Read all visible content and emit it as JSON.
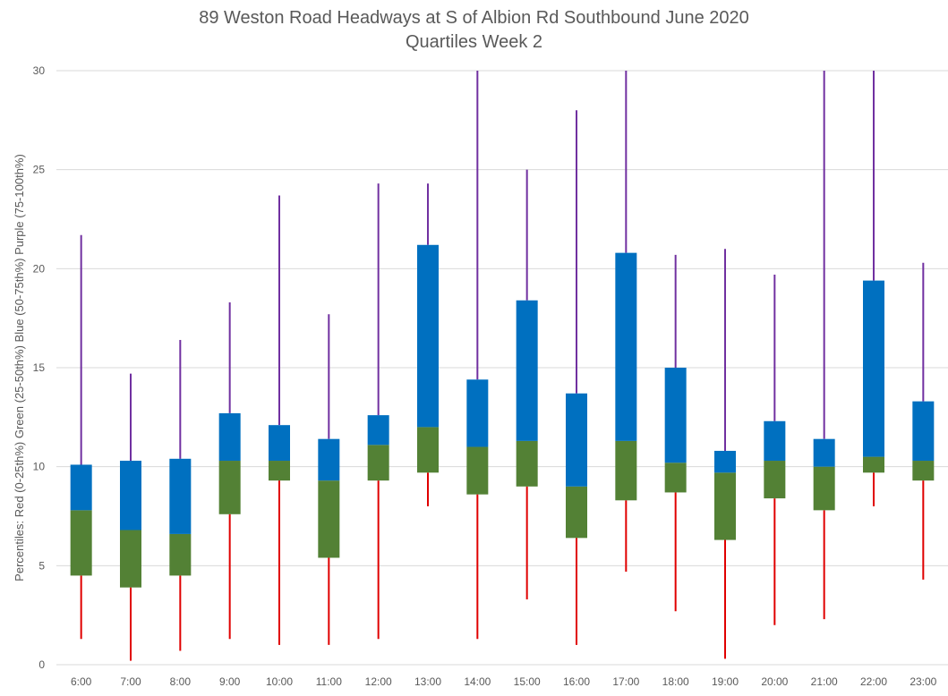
{
  "chart_data": {
    "type": "box",
    "title": "89 Weston Road Headways at S of Albion Rd Southbound June 2020",
    "subtitle": "Quartiles Week 2",
    "xlabel": "",
    "ylabel": "Percentiles:  Red (0-25th%)  Green (25-50th%)  Blue (50-75th%)  Purple (75-100th%)",
    "ylim": [
      0,
      30
    ],
    "yticks": [
      0,
      5,
      10,
      15,
      20,
      25,
      30
    ],
    "grid": true,
    "colors": {
      "min_to_q1": "#e00000",
      "q1_to_median": "#538135",
      "median_to_q3": "#0070c0",
      "q3_to_max": "#7030a0"
    },
    "categories": [
      "6:00",
      "7:00",
      "8:00",
      "9:00",
      "10:00",
      "11:00",
      "12:00",
      "13:00",
      "14:00",
      "15:00",
      "16:00",
      "17:00",
      "18:00",
      "19:00",
      "20:00",
      "21:00",
      "22:00",
      "23:00"
    ],
    "min": [
      1.3,
      0.2,
      0.7,
      1.3,
      1.0,
      1.0,
      1.3,
      8.0,
      1.3,
      3.3,
      1.0,
      4.7,
      2.7,
      0.3,
      2.0,
      2.3,
      8.0,
      4.3
    ],
    "q1": [
      4.5,
      3.9,
      4.5,
      7.6,
      9.3,
      5.4,
      9.3,
      9.7,
      8.6,
      9.0,
      6.4,
      8.3,
      8.7,
      6.3,
      8.4,
      7.8,
      9.7,
      9.3
    ],
    "median": [
      7.8,
      6.8,
      6.6,
      10.3,
      10.3,
      9.3,
      11.1,
      12.0,
      11.0,
      11.3,
      9.0,
      11.3,
      10.2,
      9.7,
      10.3,
      10.0,
      10.5,
      10.3
    ],
    "q3": [
      10.1,
      10.3,
      10.4,
      12.7,
      12.1,
      11.4,
      12.6,
      21.2,
      14.4,
      18.4,
      13.7,
      20.8,
      15.0,
      10.8,
      12.3,
      11.4,
      19.4,
      13.3
    ],
    "max": [
      21.7,
      14.7,
      16.4,
      18.3,
      23.7,
      17.7,
      24.3,
      24.3,
      30.0,
      25.0,
      28.0,
      30.0,
      20.7,
      21.0,
      19.7,
      30.0,
      30.0,
      20.3
    ]
  }
}
